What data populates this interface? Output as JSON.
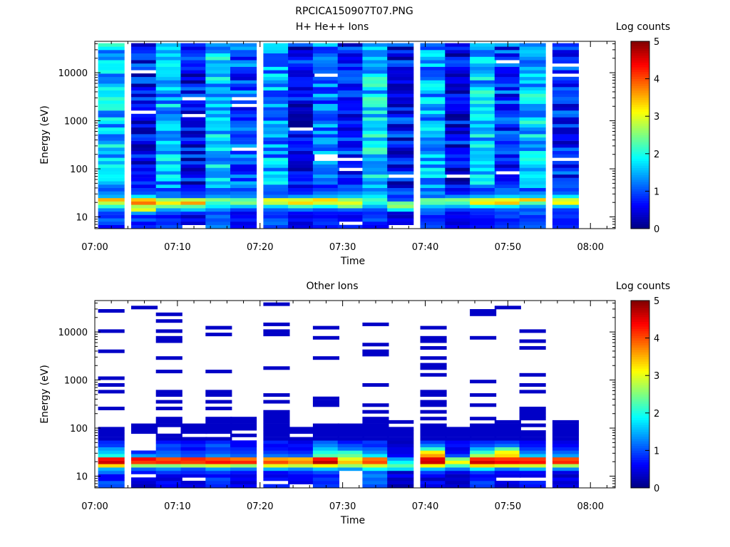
{
  "figure_title": "RPCICA150907T07.PNG",
  "chart_data": [
    {
      "type": "heatmap",
      "title": "H+ He++ Ions",
      "xlabel": "Time",
      "ylabel": "Energy (eV)",
      "yscale": "log",
      "ylim": [
        5.7,
        45000
      ],
      "xlim": [
        "07:00",
        "08:03"
      ],
      "xticks": [
        "07:00",
        "07:10",
        "07:20",
        "07:30",
        "07:40",
        "07:50",
        "08:00"
      ],
      "yticks": [
        {
          "value": 10,
          "label": "10"
        },
        {
          "value": 100,
          "label": "100"
        },
        {
          "value": 1000,
          "label": "1000"
        },
        {
          "value": 10000,
          "label": "10000"
        }
      ],
      "colorbar": {
        "label": "Log counts",
        "range": [
          0,
          5
        ],
        "ticks": [
          "0",
          "1",
          "2",
          "3",
          "4",
          "5"
        ],
        "colormap": "jet"
      },
      "grid": false,
      "time_bins": [
        "07:02",
        "07:06",
        "07:09",
        "07:12",
        "07:15",
        "07:18",
        "07:22",
        "07:25",
        "07:28",
        "07:31",
        "07:34",
        "07:37",
        "07:41",
        "07:44",
        "07:47",
        "07:50",
        "07:53",
        "07:57"
      ],
      "energy_bins": [
        6.3,
        7.4,
        8.7,
        10.2,
        12.0,
        14.1,
        16.6,
        19.5,
        22.9,
        26.9,
        31.6,
        37.1,
        43.6,
        51.2,
        60.2,
        70.7,
        83.1,
        97.6,
        115,
        135,
        158,
        186,
        219,
        257,
        302,
        355,
        417,
        490,
        575,
        676,
        794,
        933,
        1096,
        1288,
        1513,
        1778,
        2089,
        2455,
        2884,
        3388,
        3981,
        4677,
        5495,
        6457,
        7586,
        8913,
        10471,
        12303,
        14454,
        16982,
        19953,
        23442,
        27542,
        32359,
        38019
      ],
      "low_band": [
        [
          0.6,
          1.0,
          1.2,
          0.8,
          0.9,
          1.3,
          2.1,
          2.8,
          3.5,
          1.5,
          1.3,
          1.0
        ],
        [
          0.8,
          0.6,
          1.1,
          0.7,
          1.4,
          3.0,
          2.7,
          3.8,
          3.4,
          1.8,
          1.0,
          0.9
        ],
        [
          1.0,
          0.8,
          0.9,
          0.6,
          1.0,
          1.4,
          2.4,
          3.2,
          2.6,
          1.2,
          1.2,
          0.8
        ],
        [
          -1,
          0.4,
          0.7,
          0.3,
          0.8,
          1.6,
          2.3,
          3.6,
          2.8,
          1.0,
          0.9,
          0.7
        ],
        [
          1.3,
          1.1,
          1.0,
          1.2,
          0.9,
          1.3,
          1.8,
          2.1,
          2.5,
          1.4,
          1.1,
          1.0
        ],
        [
          0.6,
          0.5,
          0.8,
          0.6,
          0.5,
          0.9,
          1.6,
          2.5,
          2.3,
          1.3,
          1.2,
          0.9
        ],
        [
          0.9,
          1.2,
          1.1,
          0.8,
          0.9,
          1.1,
          1.7,
          2.8,
          3.0,
          1.2,
          1.0,
          1.1
        ],
        [
          0.5,
          0.4,
          0.7,
          0.5,
          0.6,
          1.2,
          2.2,
          3.3,
          2.9,
          1.4,
          0.8,
          0.7
        ],
        [
          0.7,
          0.9,
          0.8,
          0.6,
          0.7,
          1.0,
          1.9,
          2.9,
          3.3,
          1.5,
          1.2,
          0.9
        ],
        [
          0.8,
          -1,
          0.6,
          0.5,
          0.7,
          1.1,
          2.5,
          3.0,
          2.6,
          1.6,
          1.3,
          1.0
        ],
        [
          0.6,
          0.7,
          1.1,
          0.9,
          0.8,
          1.0,
          1.5,
          2.0,
          2.2,
          1.8,
          1.5,
          1.2
        ],
        [
          -1,
          0.5,
          0.6,
          0.3,
          0.4,
          1.8,
          2.6,
          2.4,
          1.0,
          0.8,
          1.2,
          1.0
        ],
        [
          1.0,
          0.9,
          0.8,
          0.7,
          1.1,
          1.2,
          1.6,
          2.3,
          2.4,
          1.1,
          1.4,
          1.0
        ],
        [
          0.6,
          0.4,
          0.5,
          0.6,
          0.5,
          0.9,
          1.5,
          2.2,
          2.5,
          1.3,
          0.7,
          0.5
        ],
        [
          0.7,
          0.6,
          0.6,
          0.7,
          0.8,
          0.9,
          1.9,
          3.2,
          2.9,
          1.5,
          1.0,
          0.8
        ],
        [
          0.9,
          0.8,
          0.7,
          1.0,
          0.9,
          1.1,
          1.8,
          3.4,
          3.0,
          1.7,
          1.2,
          1.2
        ],
        [
          1.1,
          1.0,
          0.9,
          0.8,
          1.2,
          1.0,
          1.4,
          2.3,
          3.4,
          1.6,
          1.3,
          0.8
        ],
        [
          0.8,
          0.7,
          0.7,
          0.9,
          0.8,
          0.9,
          1.6,
          3.1,
          2.9,
          1.8,
          1.1,
          0.9
        ]
      ],
      "upper_level": [
        1.6,
        0.7,
        1.5,
        0.6,
        1.6,
        1.0,
        1.4,
        0.6,
        1.2,
        0.8,
        1.7,
        0.7,
        1.4,
        0.6,
        1.6,
        0.9,
        1.6,
        0.8
      ],
      "upper_blanks": [
        [],
        [
          46,
          34
        ],
        [],
        [
          33,
          38
        ],
        [],
        [
          23,
          36,
          38
        ],
        [],
        [
          29
        ],
        [
          45,
          21,
          20
        ],
        [
          20,
          17
        ],
        [],
        [
          15
        ],
        [],
        [
          15
        ],
        [],
        [
          16,
          49
        ],
        [],
        [
          45,
          48,
          20
        ]
      ]
    },
    {
      "type": "heatmap",
      "title": "Other Ions",
      "xlabel": "Time",
      "ylabel": "Energy (eV)",
      "yscale": "log",
      "ylim": [
        5.7,
        45000
      ],
      "xlim": [
        "07:00",
        "08:03"
      ],
      "xticks": [
        "07:00",
        "07:10",
        "07:20",
        "07:30",
        "07:40",
        "07:50",
        "08:00"
      ],
      "yticks": [
        {
          "value": 10,
          "label": "10"
        },
        {
          "value": 100,
          "label": "100"
        },
        {
          "value": 1000,
          "label": "1000"
        },
        {
          "value": 10000,
          "label": "10000"
        }
      ],
      "colorbar": {
        "label": "Log counts",
        "range": [
          0,
          5
        ],
        "ticks": [
          "0",
          "1",
          "2",
          "3",
          "4",
          "5"
        ],
        "colormap": "jet"
      },
      "grid": false,
      "time_bins": [
        "07:02",
        "07:06",
        "07:09",
        "07:12",
        "07:15",
        "07:18",
        "07:22",
        "07:25",
        "07:28",
        "07:31",
        "07:34",
        "07:37",
        "07:41",
        "07:44",
        "07:47",
        "07:50",
        "07:53",
        "07:57"
      ],
      "energy_bins": [
        6.3,
        7.4,
        8.7,
        10.2,
        12.0,
        14.1,
        16.6,
        19.5,
        22.9,
        26.9,
        31.6,
        37.1,
        43.6,
        51.2,
        60.2,
        70.7,
        83.1,
        97.6,
        115,
        135,
        158,
        186,
        219,
        257,
        302,
        355,
        417,
        490,
        575,
        676,
        794,
        933,
        1096,
        1288,
        1513,
        1778,
        2089,
        2455,
        2884,
        3388,
        3981,
        4677,
        5495,
        6457,
        7586,
        8913,
        10471,
        12303,
        14454,
        16982,
        19953,
        23442,
        27542,
        32359,
        38019
      ],
      "low_band": [
        [
          1.0,
          1.1,
          0.6,
          0.6,
          1.2,
          1.5,
          3.3,
          4.6,
          4.3,
          2.0,
          1.6,
          1.4,
          0.9,
          0.8
        ],
        [
          0.3,
          0.4,
          0.5,
          -1,
          0.7,
          1.1,
          2.6,
          4.1,
          4.4,
          1.4,
          0.8,
          -1,
          -1,
          -1
        ],
        [
          0.6,
          0.7,
          0.4,
          0.5,
          0.9,
          1.3,
          2.5,
          4.2,
          4.0,
          1.2,
          1.1,
          0.9,
          1.0,
          0.7
        ],
        [
          0.5,
          0.4,
          -1,
          0.5,
          0.8,
          1.0,
          2.7,
          4.1,
          4.2,
          1.0,
          0.9,
          0.6,
          0.8,
          0.6
        ],
        [
          0.8,
          0.9,
          1.0,
          0.6,
          0.9,
          1.4,
          2.9,
          4.3,
          4.0,
          1.3,
          1.0,
          0.9,
          1.1,
          0.8
        ],
        [
          0.6,
          0.4,
          0.6,
          0.5,
          0.7,
          1.2,
          2.6,
          4.2,
          3.8,
          1.1,
          0.9,
          0.8,
          0.6,
          0.6
        ],
        [
          0.8,
          -1,
          0.7,
          0.5,
          0.6,
          1.5,
          3.0,
          4.0,
          3.6,
          1.2,
          0.9,
          0.7,
          0.6,
          0.8
        ],
        [
          -1,
          0.5,
          0.6,
          0.6,
          0.8,
          1.3,
          2.8,
          3.7,
          3.5,
          1.1,
          0.8,
          0.6,
          0.7,
          0.5
        ],
        [
          0.9,
          0.8,
          0.9,
          0.7,
          1.0,
          1.6,
          3.1,
          4.7,
          4.3,
          2.3,
          2.0,
          1.6,
          1.3,
          1.1
        ],
        [
          -1,
          -1,
          -1,
          -1,
          -1,
          1.4,
          2.6,
          3.4,
          3.0,
          2.4,
          2.1,
          1.2,
          1.0,
          0.7
        ],
        [
          1.0,
          1.2,
          1.1,
          1.3,
          1.1,
          1.9,
          2.9,
          4.0,
          3.8,
          1.8,
          1.3,
          1.1,
          0.8,
          0.9
        ],
        [
          0.2,
          0.4,
          0.3,
          0.6,
          0.3,
          1.7,
          2.3,
          1.9,
          1.4,
          0.6,
          0.5,
          0.5,
          0.4,
          0.3
        ],
        [
          0.5,
          0.7,
          0.3,
          0.6,
          0.9,
          1.6,
          3.1,
          4.6,
          4.5,
          3.6,
          3.2,
          2.1,
          1.3,
          0.9
        ],
        [
          0.4,
          0.3,
          0.4,
          0.3,
          0.5,
          1.2,
          2.2,
          3.1,
          2.5,
          1.0,
          0.6,
          0.5,
          0.7,
          0.6
        ],
        [
          0.9,
          1.0,
          0.7,
          0.6,
          0.9,
          1.8,
          3.3,
          4.6,
          4.2,
          2.7,
          2.1,
          1.5,
          1.0,
          0.8
        ],
        [
          0.4,
          0.5,
          -1,
          0.5,
          0.6,
          1.2,
          3.0,
          4.4,
          4.1,
          3.3,
          3.1,
          2.3,
          1.2,
          0.9
        ],
        [
          0.7,
          0.8,
          -1,
          0.5,
          0.6,
          1.5,
          2.9,
          4.3,
          4.1,
          1.6,
          1.2,
          0.9,
          0.7,
          0.6
        ],
        [
          0.5,
          0.4,
          0.6,
          0.3,
          0.5,
          1.3,
          2.7,
          4.2,
          4.0,
          1.4,
          1.1,
          0.8,
          0.6,
          0.5
        ]
      ],
      "upper_streaks": [
        [
          14,
          15,
          16,
          17,
          23,
          28,
          30,
          32,
          40,
          46,
          52
        ],
        [
          16,
          17,
          18,
          53
        ],
        [
          14,
          15,
          18,
          19,
          20,
          23,
          25,
          27,
          28,
          34,
          38,
          43,
          44,
          46,
          49,
          51
        ],
        [
          14,
          16,
          17,
          18
        ],
        [
          14,
          16,
          17,
          18,
          19,
          20,
          23,
          25,
          27,
          28,
          34,
          45,
          47,
          55
        ],
        [
          15,
          17,
          18,
          19,
          20
        ],
        [
          14,
          15,
          16,
          17,
          18,
          19,
          20,
          21,
          22,
          25,
          27,
          35,
          45,
          46,
          48,
          54,
          55
        ],
        [
          14,
          16,
          17
        ],
        [
          14,
          15,
          16,
          17,
          18,
          24,
          25,
          26,
          38,
          44,
          47
        ],
        [
          14,
          15,
          16,
          17,
          18
        ],
        [
          14,
          15,
          16,
          17,
          18,
          19,
          20,
          22,
          24,
          30,
          39,
          40,
          42,
          48
        ],
        [
          14,
          15,
          16,
          17,
          19
        ],
        [
          14,
          15,
          16,
          17,
          18,
          20,
          22,
          24,
          25,
          27,
          28,
          33,
          35,
          36,
          38,
          41,
          43,
          44,
          47,
          55
        ],
        [
          14,
          15,
          16,
          17
        ],
        [
          14,
          15,
          16,
          17,
          18,
          20,
          24,
          27,
          31,
          44,
          51,
          52
        ],
        [
          14,
          15,
          16,
          17,
          18,
          19,
          53
        ],
        [
          14,
          15,
          16,
          18,
          20,
          21,
          22,
          23,
          28,
          30,
          33,
          41,
          43,
          46
        ],
        [
          14,
          15,
          16,
          17,
          18,
          19
        ]
      ],
      "upper_streak_level": 0.35
    }
  ]
}
